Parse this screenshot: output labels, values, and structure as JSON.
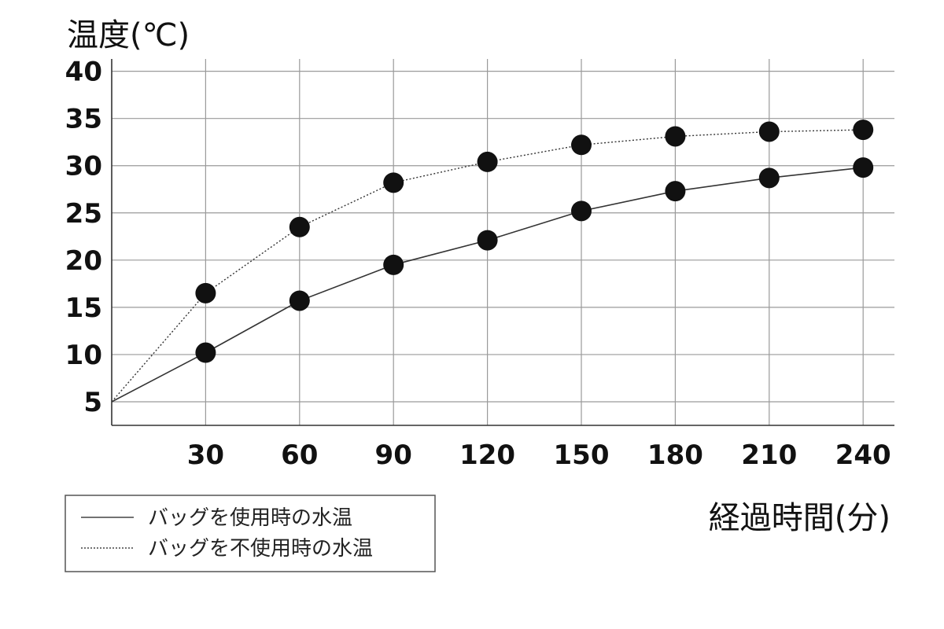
{
  "chart_data": {
    "type": "line",
    "ylabel": "温度(℃)",
    "xlabel": "経過時間(分)",
    "x_ticks": [
      "30",
      "60",
      "90",
      "120",
      "150",
      "180",
      "210",
      "240"
    ],
    "y_ticks": [
      "5",
      "10",
      "15",
      "20",
      "25",
      "30",
      "35",
      "40"
    ],
    "xlim": [
      0,
      250
    ],
    "ylim": [
      2.5,
      41.3
    ],
    "grid": true,
    "legend_position": "bottom-left",
    "series": [
      {
        "name": "バッグを使用時の水温",
        "line_style": "solid",
        "x": [
          0,
          30,
          60,
          90,
          120,
          150,
          180,
          210,
          240
        ],
        "y": [
          5,
          10.2,
          15.7,
          19.5,
          22.1,
          25.2,
          27.3,
          28.7,
          29.8
        ]
      },
      {
        "name": "バッグを不使用時の水温",
        "line_style": "dotted",
        "x": [
          0,
          30,
          60,
          90,
          120,
          150,
          180,
          210,
          240
        ],
        "y": [
          5,
          16.5,
          23.5,
          28.2,
          30.4,
          32.2,
          33.1,
          33.6,
          33.8
        ]
      }
    ],
    "colors": {
      "line": "#333333",
      "marker": "#111111",
      "grid": "#9a9a9a"
    }
  }
}
